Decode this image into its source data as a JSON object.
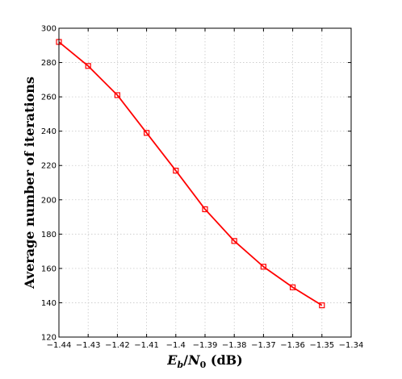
{
  "chart_data": {
    "type": "line",
    "title": "",
    "xlabel": {
      "var": "E",
      "var_sub": "b",
      "sep": "/",
      "var2": "N",
      "var2_sub": "0",
      "unit": " (dB)"
    },
    "ylabel": "Average number of iterations",
    "xlim": [
      -1.44,
      -1.34
    ],
    "ylim": [
      120,
      300
    ],
    "x_ticks": [
      -1.44,
      -1.43,
      -1.42,
      -1.41,
      -1.4,
      -1.39,
      -1.38,
      -1.37,
      -1.36,
      -1.35,
      -1.34
    ],
    "x_tick_labels": [
      "−1.44",
      "−1.43",
      "−1.42",
      "−1.41",
      "−1.4",
      "−1.39",
      "−1.38",
      "−1.37",
      "−1.36",
      "−1.35",
      "−1.34"
    ],
    "y_ticks": [
      120,
      140,
      160,
      180,
      200,
      220,
      240,
      260,
      280,
      300
    ],
    "y_tick_labels": [
      "120",
      "140",
      "160",
      "180",
      "200",
      "220",
      "240",
      "260",
      "280",
      "300"
    ],
    "grid": true,
    "series": [
      {
        "color": "#ff0000",
        "marker": "square",
        "x": [
          -1.44,
          -1.43,
          -1.42,
          -1.41,
          -1.4,
          -1.39,
          -1.38,
          -1.37,
          -1.36,
          -1.35
        ],
        "y": [
          292,
          278,
          261,
          239,
          217,
          194.5,
          176,
          161,
          149,
          138.5
        ]
      }
    ]
  }
}
